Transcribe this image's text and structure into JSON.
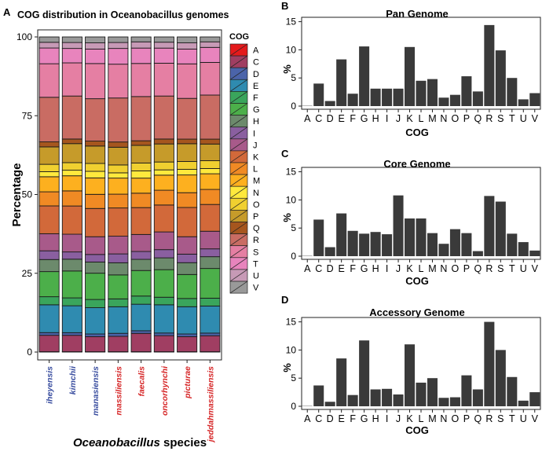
{
  "cog_colors": {
    "A": "#e41a1c",
    "C": "#a03e62",
    "D": "#4b64aa",
    "E": "#2f8bb0",
    "F": "#3aa55c",
    "G": "#4caf4a",
    "H": "#6c8a6c",
    "I": "#8a5fa0",
    "J": "#a85a8a",
    "K": "#d2693a",
    "L": "#f08a24",
    "M": "#fdb01f",
    "N": "#ffe93d",
    "O": "#f0d030",
    "P": "#c69b2a",
    "Q": "#a6561e",
    "R": "#c96c63",
    "S": "#e57fa3",
    "T": "#e884bd",
    "U": "#c79ab6",
    "V": "#999999"
  },
  "chart_data": [
    {
      "panel_label": "A",
      "type": "bar",
      "stacked": true,
      "title": "COG distribution in Oceanobacillus genomes",
      "xlabel_species": "Oceanobacillus",
      "xlabel_suffix": "species",
      "ylabel": "Percentage",
      "ylim": [
        0,
        100
      ],
      "yticks": [
        0,
        25,
        50,
        75,
        100
      ],
      "legend_title": "COG",
      "legend_position": "right",
      "categories": [
        "iheyensis",
        "kimchii",
        "manasiensis",
        "massiliensis",
        "faecalis",
        "oncorhynchi",
        "picturae",
        "jeddahmassiliensis"
      ],
      "category_colors": [
        "#3b4fa0",
        "#3b4fa0",
        "#3b4fa0",
        "#d62728",
        "#d62728",
        "#d62728",
        "#d62728",
        "#d62728"
      ],
      "cog_order": [
        "A",
        "C",
        "D",
        "E",
        "F",
        "G",
        "H",
        "I",
        "J",
        "K",
        "L",
        "M",
        "N",
        "O",
        "P",
        "Q",
        "R",
        "S",
        "T",
        "U",
        "V"
      ],
      "series": [
        {
          "name": "A",
          "values": [
            0.1,
            0.1,
            0.1,
            0.1,
            0.1,
            0.1,
            0.1,
            0.1
          ]
        },
        {
          "name": "C",
          "values": [
            4.9,
            5.0,
            4.6,
            4.7,
            5.6,
            4.9,
            4.6,
            4.9
          ]
        },
        {
          "name": "D",
          "values": [
            0.8,
            0.8,
            0.8,
            0.9,
            0.8,
            0.8,
            0.8,
            0.8
          ]
        },
        {
          "name": "E",
          "values": [
            8.3,
            8.2,
            8.0,
            8.1,
            8.1,
            8.6,
            8.3,
            8.3
          ]
        },
        {
          "name": "F",
          "values": [
            2.4,
            2.4,
            2.5,
            2.4,
            2.5,
            2.3,
            2.5,
            2.4
          ]
        },
        {
          "name": "G",
          "values": [
            7.5,
            8.2,
            8.0,
            7.3,
            7.8,
            8.4,
            7.3,
            9.1
          ]
        },
        {
          "name": "H",
          "values": [
            3.6,
            3.6,
            3.4,
            3.7,
            3.4,
            3.6,
            3.6,
            3.6
          ]
        },
        {
          "name": "I",
          "values": [
            2.6,
            2.2,
            2.3,
            2.7,
            2.4,
            2.5,
            2.6,
            2.4
          ]
        },
        {
          "name": "J",
          "values": [
            5.1,
            5.4,
            5.4,
            5.4,
            5.2,
            5.4,
            5.3,
            5.4
          ]
        },
        {
          "name": "K",
          "values": [
            8.3,
            8.6,
            8.6,
            8.6,
            8.2,
            8.2,
            8.9,
            8.2
          ]
        },
        {
          "name": "L",
          "values": [
            4.2,
            4.6,
            4.3,
            4.2,
            4.4,
            4.5,
            4.5,
            4.6
          ]
        },
        {
          "name": "M",
          "values": [
            4.5,
            4.6,
            5.0,
            4.9,
            4.6,
            4.6,
            5.4,
            4.8
          ]
        },
        {
          "name": "N",
          "values": [
            1.5,
            1.7,
            2.0,
            1.6,
            2.2,
            1.6,
            1.7,
            1.6
          ]
        },
        {
          "name": "O",
          "values": [
            2.2,
            2.3,
            2.4,
            2.4,
            2.4,
            2.4,
            2.4,
            2.4
          ]
        },
        {
          "name": "P",
          "values": [
            5.2,
            5.8,
            5.3,
            5.4,
            5.4,
            5.5,
            5.4,
            5.1
          ]
        },
        {
          "name": "Q",
          "values": [
            1.5,
            1.4,
            1.5,
            1.6,
            1.4,
            1.5,
            1.4,
            1.5
          ]
        },
        {
          "name": "R",
          "values": [
            13.3,
            13.1,
            12.9,
            13.4,
            13.5,
            13.1,
            12.4,
            13.5
          ]
        },
        {
          "name": "S",
          "values": [
            10.0,
            10.1,
            10.7,
            10.3,
            10.1,
            10.0,
            10.5,
            10.0
          ]
        },
        {
          "name": "T",
          "values": [
            4.7,
            4.4,
            4.4,
            4.8,
            4.7,
            4.6,
            4.5,
            4.6
          ]
        },
        {
          "name": "U",
          "values": [
            1.7,
            1.8,
            1.9,
            1.8,
            1.9,
            1.8,
            1.9,
            1.7
          ]
        },
        {
          "name": "V",
          "values": [
            1.6,
            1.7,
            1.8,
            1.7,
            1.5,
            1.6,
            1.8,
            1.5
          ]
        }
      ]
    },
    {
      "panel_label": "B",
      "type": "bar",
      "title": "Pan Genome",
      "xlabel": "COG",
      "ylabel": "%",
      "ylim": [
        0,
        15.5
      ],
      "yticks": [
        0,
        5,
        10,
        15
      ],
      "categories": [
        "A",
        "C",
        "D",
        "E",
        "F",
        "G",
        "H",
        "I",
        "J",
        "K",
        "L",
        "M",
        "N",
        "O",
        "P",
        "Q",
        "R",
        "S",
        "T",
        "U",
        "V"
      ],
      "values": [
        0.05,
        4.0,
        0.9,
        8.3,
        2.2,
        10.6,
        3.1,
        3.1,
        3.1,
        10.5,
        4.5,
        4.8,
        1.5,
        2.0,
        5.3,
        2.6,
        14.4,
        9.9,
        5.0,
        1.2,
        2.3
      ]
    },
    {
      "panel_label": "C",
      "type": "bar",
      "title": "Core Genome",
      "xlabel": "COG",
      "ylabel": "%",
      "ylim": [
        0,
        15.5
      ],
      "yticks": [
        0,
        5,
        10,
        15
      ],
      "categories": [
        "A",
        "C",
        "D",
        "E",
        "F",
        "G",
        "H",
        "I",
        "J",
        "K",
        "L",
        "M",
        "N",
        "O",
        "P",
        "Q",
        "R",
        "S",
        "T",
        "U",
        "V"
      ],
      "values": [
        0.05,
        6.5,
        1.6,
        7.6,
        4.5,
        4.0,
        4.3,
        3.9,
        10.8,
        6.7,
        6.7,
        4.1,
        2.2,
        4.8,
        4.1,
        0.9,
        10.7,
        9.7,
        4.0,
        2.5,
        1.0
      ]
    },
    {
      "panel_label": "D",
      "type": "bar",
      "title": "Accessory Genome",
      "xlabel": "COG",
      "ylabel": "%",
      "ylim": [
        0,
        15.5
      ],
      "yticks": [
        0,
        5,
        10,
        15
      ],
      "categories": [
        "A",
        "C",
        "D",
        "E",
        "F",
        "G",
        "H",
        "I",
        "J",
        "K",
        "L",
        "M",
        "N",
        "O",
        "P",
        "Q",
        "R",
        "S",
        "T",
        "U",
        "V"
      ],
      "values": [
        0.05,
        3.7,
        0.8,
        8.5,
        2.0,
        11.7,
        3.0,
        3.1,
        2.1,
        11.0,
        4.2,
        5.0,
        1.5,
        1.6,
        5.5,
        3.0,
        15.0,
        10.0,
        5.2,
        1.0,
        2.5
      ]
    }
  ]
}
